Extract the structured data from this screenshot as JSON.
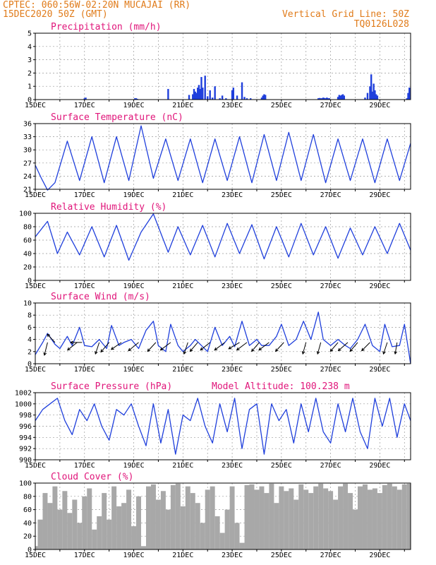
{
  "header": {
    "line1": "CPTEC:  060:56W-02:20N  MUCAJAI (RR)",
    "line2": "15DEC2020 50Z (GMT)",
    "right1": "Vertical Grid Line: 50Z",
    "right2": "TQ0126L028"
  },
  "colors": {
    "header": "#e07b1a",
    "title": "#e0157a",
    "line": "#1f3fdc",
    "bar": "#1f3fdc",
    "cloud": "#a8a8a8",
    "arrow": "#000000"
  },
  "chart_data": [
    {
      "type": "bar",
      "title": "Precipitation (mm/h)",
      "x_ticks": [
        "15DEC",
        "17DEC",
        "19DEC",
        "21DEC",
        "23DEC",
        "25DEC",
        "27DEC",
        "29DEC"
      ],
      "xlim": [
        0,
        15.25
      ],
      "ylim": [
        0,
        5
      ],
      "y_ticks": [
        "0",
        "1",
        "2",
        "3",
        "4",
        "5"
      ],
      "grid": true,
      "x": [
        2.0,
        2.05,
        4.05,
        4.1,
        4.15,
        5.4,
        6.25,
        6.4,
        6.45,
        6.5,
        6.55,
        6.6,
        6.65,
        6.7,
        6.75,
        6.8,
        6.9,
        7.0,
        7.1,
        7.2,
        7.3,
        7.5,
        7.6,
        7.75,
        8.0,
        8.05,
        8.2,
        8.4,
        8.5,
        8.6,
        8.75,
        9.2,
        9.25,
        9.3,
        9.35,
        11.5,
        11.55,
        11.6,
        11.65,
        11.7,
        11.75,
        11.8,
        11.85,
        11.9,
        11.95,
        12.3,
        12.35,
        12.4,
        12.45,
        12.5,
        12.55,
        13.4,
        13.5,
        13.6,
        13.65,
        13.7,
        13.75,
        13.8,
        13.85,
        13.9,
        15.1,
        15.15,
        15.2
      ],
      "values": [
        0.1,
        0.15,
        0.1,
        0.1,
        0.05,
        0.8,
        0.35,
        0.4,
        0.8,
        0.6,
        0.5,
        0.9,
        1.1,
        0.8,
        1.7,
        0.9,
        1.8,
        0.25,
        0.7,
        0.15,
        1.0,
        0.1,
        0.3,
        0.1,
        0.7,
        0.9,
        0.3,
        1.3,
        0.2,
        0.1,
        0.1,
        0.15,
        0.3,
        0.4,
        0.35,
        0.1,
        0.12,
        0.1,
        0.1,
        0.15,
        0.12,
        0.1,
        0.15,
        0.1,
        0.1,
        0.2,
        0.35,
        0.3,
        0.35,
        0.4,
        0.3,
        0.15,
        0.5,
        1.0,
        1.9,
        0.6,
        1.2,
        0.7,
        0.4,
        0.3,
        0.1,
        0.5,
        0.9
      ]
    },
    {
      "type": "line",
      "title": "Surface Temperature (nC)",
      "x_ticks": [
        "15DEC",
        "17DEC",
        "19DEC",
        "21DEC",
        "23DEC",
        "25DEC",
        "27DEC",
        "29DEC"
      ],
      "xlim": [
        0,
        15.25
      ],
      "ylim": [
        21,
        36
      ],
      "y_ticks": [
        "21",
        "24",
        "27",
        "30",
        "33",
        "36"
      ],
      "grid": true,
      "series": [
        {
          "x": [
            0.0,
            0.25,
            0.5,
            0.8,
            1.3,
            1.8,
            2.3,
            2.8,
            3.3,
            3.8,
            4.3,
            4.8,
            5.3,
            5.8,
            6.3,
            6.8,
            7.3,
            7.8,
            8.3,
            8.8,
            9.3,
            9.8,
            10.3,
            10.8,
            11.3,
            11.8,
            12.3,
            12.8,
            13.3,
            13.8,
            14.3,
            14.8,
            15.25
          ],
          "values": [
            26.5,
            23.5,
            20.8,
            22.5,
            32.0,
            23.0,
            33.0,
            22.5,
            33.0,
            23.0,
            35.5,
            23.5,
            32.5,
            23.0,
            32.5,
            22.5,
            32.5,
            23.0,
            33.0,
            22.5,
            33.5,
            23.0,
            34.0,
            23.0,
            33.5,
            22.5,
            32.5,
            23.0,
            32.5,
            22.5,
            32.5,
            23.0,
            31.5
          ]
        }
      ]
    },
    {
      "type": "line",
      "title": "Relative Humidity (%)",
      "x_ticks": [
        "15DEC",
        "17DEC",
        "19DEC",
        "21DEC",
        "23DEC",
        "25DEC",
        "27DEC",
        "29DEC"
      ],
      "xlim": [
        0,
        15.25
      ],
      "ylim": [
        0,
        100
      ],
      "y_ticks": [
        "0",
        "20",
        "40",
        "60",
        "80",
        "100"
      ],
      "grid": true,
      "series": [
        {
          "x": [
            0.0,
            0.5,
            0.9,
            1.3,
            1.8,
            2.3,
            2.8,
            3.3,
            3.8,
            4.3,
            4.8,
            5.4,
            5.8,
            6.3,
            6.8,
            7.3,
            7.8,
            8.3,
            8.8,
            9.3,
            9.8,
            10.3,
            10.8,
            11.3,
            11.8,
            12.3,
            12.8,
            13.3,
            13.8,
            14.3,
            14.8,
            15.25
          ],
          "values": [
            65,
            88,
            40,
            72,
            38,
            80,
            35,
            82,
            30,
            72,
            99,
            42,
            80,
            38,
            82,
            35,
            85,
            40,
            83,
            32,
            80,
            35,
            85,
            38,
            80,
            33,
            78,
            38,
            80,
            40,
            85,
            45
          ]
        }
      ]
    },
    {
      "type": "line",
      "title": "Surface Wind (m/s)",
      "x_ticks": [
        "15DEC",
        "17DEC",
        "19DEC",
        "21DEC",
        "23DEC",
        "25DEC",
        "27DEC",
        "29DEC"
      ],
      "xlim": [
        0,
        15.25
      ],
      "ylim": [
        0,
        10
      ],
      "y_ticks": [
        "0",
        "2",
        "4",
        "6",
        "8",
        "10"
      ],
      "grid": true,
      "series": [
        {
          "x": [
            0.0,
            0.3,
            0.5,
            0.8,
            1.0,
            1.3,
            1.5,
            1.8,
            2.0,
            2.3,
            2.6,
            2.9,
            3.1,
            3.4,
            3.6,
            3.9,
            4.2,
            4.5,
            4.8,
            5.0,
            5.3,
            5.5,
            5.8,
            6.0,
            6.3,
            6.5,
            6.8,
            7.0,
            7.3,
            7.6,
            7.9,
            8.1,
            8.4,
            8.7,
            9.0,
            9.2,
            9.5,
            9.8,
            10.0,
            10.3,
            10.6,
            10.9,
            11.2,
            11.5,
            11.7,
            12.0,
            12.3,
            12.6,
            12.8,
            13.1,
            13.4,
            13.7,
            14.0,
            14.2,
            14.5,
            14.8,
            15.0,
            15.25
          ],
          "values": [
            1.5,
            3.5,
            5.0,
            3.2,
            2.5,
            4.5,
            3.0,
            6.0,
            3.0,
            2.8,
            4.0,
            2.5,
            6.3,
            3.0,
            3.5,
            4.0,
            2.5,
            5.5,
            7.0,
            3.0,
            2.0,
            6.5,
            3.0,
            2.0,
            3.0,
            4.0,
            2.8,
            2.0,
            6.0,
            3.0,
            4.5,
            2.8,
            7.0,
            3.0,
            4.0,
            3.0,
            3.0,
            4.5,
            6.5,
            3.0,
            4.0,
            7.0,
            4.0,
            8.5,
            4.0,
            3.0,
            4.0,
            3.0,
            2.5,
            4.0,
            6.5,
            3.0,
            2.0,
            6.5,
            2.8,
            3.0,
            6.5,
            0.0
          ]
        }
      ],
      "arrows": [
        {
          "x": 0.5,
          "u": -0.5,
          "v": -2.0
        },
        {
          "x": 0.8,
          "u": -1.2,
          "v": 1.3
        },
        {
          "x": 1.7,
          "u": -1.5,
          "v": -1.2
        },
        {
          "x": 1.9,
          "u": -1.8,
          "v": 0.0
        },
        {
          "x": 2.6,
          "u": -0.6,
          "v": -1.8
        },
        {
          "x": 3.0,
          "u": -1.3,
          "v": -1.5
        },
        {
          "x": 3.5,
          "u": -1.6,
          "v": -1.1
        },
        {
          "x": 4.2,
          "u": -1.6,
          "v": -1.3
        },
        {
          "x": 4.9,
          "u": -1.3,
          "v": -1.4
        },
        {
          "x": 5.5,
          "u": -1.6,
          "v": -1.2
        },
        {
          "x": 6.2,
          "u": -0.6,
          "v": -1.8
        },
        {
          "x": 6.6,
          "u": -1.2,
          "v": -1.4
        },
        {
          "x": 7.1,
          "u": -1.5,
          "v": -1.2
        },
        {
          "x": 7.7,
          "u": -1.6,
          "v": -1.2
        },
        {
          "x": 8.3,
          "u": -1.7,
          "v": -1.0
        },
        {
          "x": 8.6,
          "u": -1.6,
          "v": -1.2
        },
        {
          "x": 9.1,
          "u": -1.2,
          "v": -1.4
        },
        {
          "x": 9.5,
          "u": -1.6,
          "v": -1.2
        },
        {
          "x": 10.1,
          "u": -1.3,
          "v": -1.4
        },
        {
          "x": 11.0,
          "u": -0.5,
          "v": -1.8
        },
        {
          "x": 11.6,
          "u": -0.5,
          "v": -1.8
        },
        {
          "x": 12.3,
          "u": -1.2,
          "v": -1.4
        },
        {
          "x": 12.7,
          "u": -1.5,
          "v": -1.3
        },
        {
          "x": 13.1,
          "u": -1.2,
          "v": -1.4
        },
        {
          "x": 13.6,
          "u": -1.3,
          "v": -1.3
        },
        {
          "x": 14.3,
          "u": -0.6,
          "v": -1.8
        },
        {
          "x": 14.7,
          "u": -0.3,
          "v": -1.8
        }
      ]
    },
    {
      "type": "line",
      "title": "Surface Pressure (hPa)",
      "annotation": "Model Altitude: 100.238 m",
      "x_ticks": [
        "15DEC",
        "17DEC",
        "19DEC",
        "21DEC",
        "23DEC",
        "25DEC",
        "27DEC",
        "29DEC"
      ],
      "xlim": [
        0,
        15.25
      ],
      "ylim": [
        990,
        1002
      ],
      "y_ticks": [
        "990",
        "992",
        "994",
        "996",
        "998",
        "1000",
        "1002"
      ],
      "grid": true,
      "series": [
        {
          "x": [
            0.0,
            0.3,
            0.6,
            0.9,
            1.2,
            1.5,
            1.8,
            2.1,
            2.4,
            2.7,
            3.0,
            3.3,
            3.6,
            3.9,
            4.2,
            4.5,
            4.8,
            5.1,
            5.4,
            5.7,
            6.0,
            6.3,
            6.6,
            6.9,
            7.2,
            7.5,
            7.8,
            8.1,
            8.4,
            8.7,
            9.0,
            9.3,
            9.6,
            9.9,
            10.2,
            10.5,
            10.8,
            11.1,
            11.4,
            11.7,
            12.0,
            12.3,
            12.6,
            12.9,
            13.2,
            13.5,
            13.8,
            14.1,
            14.4,
            14.7,
            15.0,
            15.25
          ],
          "values": [
            997,
            999,
            1000,
            1001,
            997,
            994.5,
            999,
            997,
            1000,
            996,
            993.5,
            999,
            998,
            1000,
            996,
            992.5,
            1000,
            993,
            999,
            991,
            998,
            997,
            1001,
            996,
            993,
            1000,
            995,
            1001,
            992,
            999,
            1000,
            991,
            1000,
            997,
            999,
            993,
            1000,
            995,
            1001,
            995,
            993,
            1000,
            995,
            1001,
            995,
            992,
            1001,
            996,
            1001,
            994,
            1000,
            997
          ]
        }
      ]
    },
    {
      "type": "area",
      "title": "Cloud Cover (%)",
      "x_ticks": [
        "15DEC",
        "17DEC",
        "19DEC",
        "21DEC",
        "23DEC",
        "25DEC",
        "27DEC",
        "29DEC"
      ],
      "xlim": [
        0,
        15.25
      ],
      "ylim": [
        0,
        100
      ],
      "y_ticks": [
        "0",
        "20",
        "40",
        "60",
        "80",
        "100"
      ],
      "grid": true,
      "series": [
        {
          "x": [
            0.0,
            0.1,
            0.3,
            0.5,
            0.7,
            0.9,
            1.1,
            1.3,
            1.5,
            1.7,
            1.9,
            2.1,
            2.3,
            2.5,
            2.7,
            2.9,
            3.1,
            3.3,
            3.5,
            3.7,
            3.9,
            4.1,
            4.3,
            4.5,
            4.7,
            4.9,
            5.1,
            5.3,
            5.5,
            5.7,
            5.9,
            6.1,
            6.3,
            6.5,
            6.7,
            6.9,
            7.1,
            7.3,
            7.5,
            7.7,
            7.9,
            8.1,
            8.3,
            8.5,
            8.7,
            8.9,
            9.1,
            9.3,
            9.5,
            9.7,
            9.9,
            10.1,
            10.3,
            10.5,
            10.7,
            10.9,
            11.1,
            11.3,
            11.5,
            11.7,
            11.9,
            12.1,
            12.3,
            12.5,
            12.7,
            12.9,
            13.1,
            13.3,
            13.5,
            13.7,
            13.9,
            14.1,
            14.3,
            14.5,
            14.7,
            14.9,
            15.1,
            15.25
          ],
          "values": [
            5,
            45,
            85,
            70,
            95,
            60,
            88,
            55,
            75,
            40,
            80,
            92,
            30,
            50,
            85,
            45,
            95,
            65,
            70,
            90,
            35,
            80,
            5,
            95,
            98,
            75,
            88,
            60,
            97,
            99,
            65,
            95,
            85,
            70,
            40,
            90,
            95,
            50,
            25,
            60,
            95,
            40,
            10,
            97,
            98,
            90,
            95,
            85,
            99,
            70,
            95,
            88,
            92,
            75,
            98,
            90,
            85,
            95,
            99,
            92,
            88,
            75,
            95,
            99,
            85,
            60,
            95,
            98,
            90,
            92,
            85,
            97,
            99,
            95,
            90,
            98,
            99,
            98
          ]
        }
      ]
    }
  ]
}
